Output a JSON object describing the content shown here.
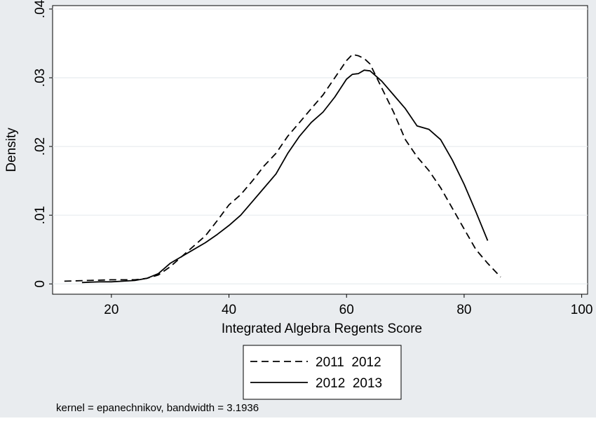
{
  "chart_data": {
    "type": "line",
    "title": "",
    "xlabel": "Integrated Algebra Regents Score",
    "ylabel": "Density",
    "note": "kernel = epanechnikov, bandwidth = 3.1936",
    "xlim": [
      10,
      101
    ],
    "ylim": [
      -0.0015,
      0.0405
    ],
    "xticks": [
      20,
      40,
      60,
      80,
      100
    ],
    "xtick_labels": [
      "20",
      "40",
      "60",
      "80",
      "100"
    ],
    "yticks": [
      0,
      0.01,
      0.02,
      0.03,
      0.04
    ],
    "ytick_labels": [
      "0",
      ".01",
      ".02",
      ".03",
      ".04"
    ],
    "grid": true,
    "legend_position": "bottom",
    "background": "#ffffff",
    "outer_background": "#e9ecef",
    "series": [
      {
        "name": "2011  2012",
        "style": "dashed",
        "color": "#000000",
        "x": [
          12,
          16,
          20,
          24,
          26,
          28,
          30,
          32,
          34,
          36,
          38,
          40,
          42,
          44,
          46,
          48,
          50,
          52,
          54,
          56,
          58,
          60,
          61,
          62,
          63,
          64,
          66,
          68,
          70,
          72,
          74,
          76,
          78,
          80,
          82,
          84,
          86.2
        ],
        "y": [
          0.0004,
          0.0005,
          0.0006,
          0.0006,
          0.0008,
          0.0013,
          0.0025,
          0.004,
          0.0055,
          0.007,
          0.0092,
          0.0115,
          0.013,
          0.015,
          0.0172,
          0.019,
          0.0215,
          0.0235,
          0.0255,
          0.0275,
          0.03,
          0.0325,
          0.0334,
          0.0332,
          0.0328,
          0.032,
          0.0285,
          0.025,
          0.021,
          0.0185,
          0.0165,
          0.014,
          0.011,
          0.008,
          0.005,
          0.003,
          0.001
        ]
      },
      {
        "name": "2012  2013",
        "style": "solid",
        "color": "#000000",
        "x": [
          15,
          18,
          20,
          22,
          24,
          26,
          28,
          30,
          32,
          34,
          36,
          38,
          40,
          42,
          44,
          46,
          48,
          50,
          52,
          54,
          56,
          58,
          60,
          61,
          62,
          63,
          64,
          66,
          68,
          70,
          72,
          74,
          76,
          78,
          80,
          82,
          84
        ],
        "y": [
          0.0002,
          0.0003,
          0.0003,
          0.0004,
          0.0005,
          0.0008,
          0.0015,
          0.003,
          0.004,
          0.005,
          0.006,
          0.0072,
          0.0085,
          0.01,
          0.012,
          0.014,
          0.016,
          0.019,
          0.0215,
          0.0235,
          0.025,
          0.0272,
          0.0298,
          0.0305,
          0.0306,
          0.0311,
          0.031,
          0.0295,
          0.0275,
          0.0255,
          0.023,
          0.0225,
          0.021,
          0.018,
          0.0145,
          0.0105,
          0.0063
        ]
      }
    ]
  }
}
